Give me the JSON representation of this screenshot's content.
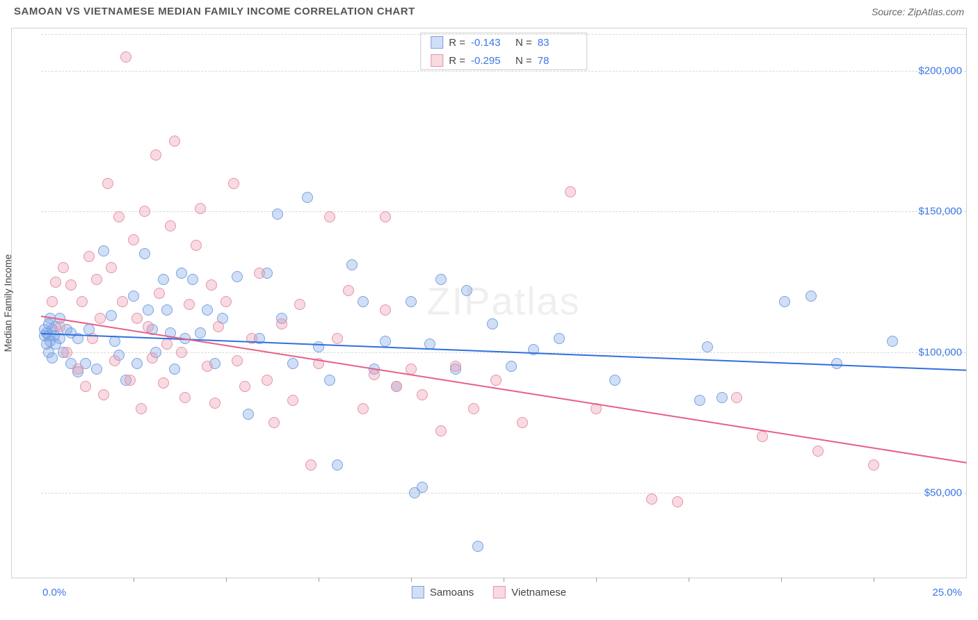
{
  "header": {
    "title": "SAMOAN VS VIETNAMESE MEDIAN FAMILY INCOME CORRELATION CHART",
    "source": "Source: ZipAtlas.com"
  },
  "watermark": "ZIPatlas",
  "chart": {
    "type": "scatter",
    "ylabel": "Median Family Income",
    "xlim": [
      0,
      25
    ],
    "ylim": [
      20000,
      215000
    ],
    "x_axis_left_label": "0.0%",
    "x_axis_right_label": "25.0%",
    "xtick_positions": [
      2.5,
      5.0,
      7.5,
      10.0,
      12.5,
      15.0,
      17.5,
      20.0,
      22.5
    ],
    "yticks": [
      50000,
      100000,
      150000,
      200000
    ],
    "ytick_labels": [
      "$50,000",
      "$100,000",
      "$150,000",
      "$200,000"
    ],
    "grid_color": "#d8d8d8",
    "background_color": "#ffffff",
    "axis_label_color": "#3b78e7",
    "point_radius": 8,
    "series": [
      {
        "name": "Samoans",
        "fill": "rgba(120,160,230,0.35)",
        "stroke": "#7aa3e0",
        "R": "-0.143",
        "N": "83",
        "regression": {
          "x1": 0,
          "y1": 107000,
          "x2": 25,
          "y2": 94000,
          "color": "#2f6fe0"
        },
        "points": [
          [
            0.1,
            106000
          ],
          [
            0.1,
            108000
          ],
          [
            0.15,
            103000
          ],
          [
            0.15,
            107000
          ],
          [
            0.2,
            100000
          ],
          [
            0.2,
            110000
          ],
          [
            0.2,
            106000
          ],
          [
            0.25,
            104000
          ],
          [
            0.25,
            112000
          ],
          [
            0.3,
            108000
          ],
          [
            0.3,
            98000
          ],
          [
            0.35,
            106000
          ],
          [
            0.4,
            109000
          ],
          [
            0.4,
            103000
          ],
          [
            0.5,
            105000
          ],
          [
            0.5,
            112000
          ],
          [
            0.6,
            100000
          ],
          [
            0.7,
            108000
          ],
          [
            0.8,
            107000
          ],
          [
            0.8,
            96000
          ],
          [
            1.0,
            93000
          ],
          [
            1.0,
            105000
          ],
          [
            1.2,
            96000
          ],
          [
            1.3,
            108000
          ],
          [
            1.5,
            94000
          ],
          [
            1.7,
            136000
          ],
          [
            1.9,
            113000
          ],
          [
            2.0,
            104000
          ],
          [
            2.1,
            99000
          ],
          [
            2.3,
            90000
          ],
          [
            2.5,
            120000
          ],
          [
            2.6,
            96000
          ],
          [
            2.8,
            135000
          ],
          [
            2.9,
            115000
          ],
          [
            3.0,
            108000
          ],
          [
            3.1,
            100000
          ],
          [
            3.3,
            126000
          ],
          [
            3.4,
            115000
          ],
          [
            3.5,
            107000
          ],
          [
            3.6,
            94000
          ],
          [
            3.8,
            128000
          ],
          [
            3.9,
            105000
          ],
          [
            4.1,
            126000
          ],
          [
            4.3,
            107000
          ],
          [
            4.5,
            115000
          ],
          [
            4.7,
            96000
          ],
          [
            4.9,
            112000
          ],
          [
            5.3,
            127000
          ],
          [
            5.6,
            78000
          ],
          [
            5.9,
            105000
          ],
          [
            6.1,
            128000
          ],
          [
            6.4,
            149000
          ],
          [
            6.5,
            112000
          ],
          [
            6.8,
            96000
          ],
          [
            7.2,
            155000
          ],
          [
            7.5,
            102000
          ],
          [
            7.8,
            90000
          ],
          [
            8.0,
            60000
          ],
          [
            8.4,
            131000
          ],
          [
            8.7,
            118000
          ],
          [
            9.0,
            94000
          ],
          [
            9.3,
            104000
          ],
          [
            9.6,
            88000
          ],
          [
            10.0,
            118000
          ],
          [
            10.1,
            50000
          ],
          [
            10.3,
            52000
          ],
          [
            10.5,
            103000
          ],
          [
            10.8,
            126000
          ],
          [
            11.2,
            94000
          ],
          [
            11.5,
            122000
          ],
          [
            11.8,
            31000
          ],
          [
            12.2,
            110000
          ],
          [
            12.7,
            95000
          ],
          [
            13.3,
            101000
          ],
          [
            14.0,
            105000
          ],
          [
            15.5,
            90000
          ],
          [
            17.8,
            83000
          ],
          [
            18.4,
            84000
          ],
          [
            18.0,
            102000
          ],
          [
            20.1,
            118000
          ],
          [
            20.8,
            120000
          ],
          [
            21.5,
            96000
          ],
          [
            23.0,
            104000
          ]
        ]
      },
      {
        "name": "Vietnamese",
        "fill": "rgba(235,150,170,0.35)",
        "stroke": "#e693ab",
        "R": "-0.295",
        "N": "78",
        "regression": {
          "x1": 0,
          "y1": 113000,
          "x2": 25,
          "y2": 61000,
          "color": "#e75e87"
        },
        "points": [
          [
            0.3,
            118000
          ],
          [
            0.4,
            125000
          ],
          [
            0.5,
            109000
          ],
          [
            0.6,
            130000
          ],
          [
            0.7,
            100000
          ],
          [
            0.8,
            124000
          ],
          [
            1.0,
            94000
          ],
          [
            1.1,
            118000
          ],
          [
            1.2,
            88000
          ],
          [
            1.3,
            134000
          ],
          [
            1.4,
            105000
          ],
          [
            1.5,
            126000
          ],
          [
            1.6,
            112000
          ],
          [
            1.7,
            85000
          ],
          [
            1.8,
            160000
          ],
          [
            1.9,
            130000
          ],
          [
            2.0,
            97000
          ],
          [
            2.1,
            148000
          ],
          [
            2.2,
            118000
          ],
          [
            2.3,
            205000
          ],
          [
            2.4,
            90000
          ],
          [
            2.5,
            140000
          ],
          [
            2.6,
            112000
          ],
          [
            2.7,
            80000
          ],
          [
            2.8,
            150000
          ],
          [
            2.9,
            109000
          ],
          [
            3.0,
            98000
          ],
          [
            3.1,
            170000
          ],
          [
            3.2,
            121000
          ],
          [
            3.3,
            89000
          ],
          [
            3.4,
            103000
          ],
          [
            3.5,
            145000
          ],
          [
            3.6,
            175000
          ],
          [
            3.8,
            100000
          ],
          [
            3.9,
            84000
          ],
          [
            4.0,
            117000
          ],
          [
            4.2,
            138000
          ],
          [
            4.3,
            151000
          ],
          [
            4.5,
            95000
          ],
          [
            4.6,
            124000
          ],
          [
            4.7,
            82000
          ],
          [
            4.8,
            109000
          ],
          [
            5.0,
            118000
          ],
          [
            5.2,
            160000
          ],
          [
            5.3,
            97000
          ],
          [
            5.5,
            88000
          ],
          [
            5.7,
            105000
          ],
          [
            5.9,
            128000
          ],
          [
            6.1,
            90000
          ],
          [
            6.3,
            75000
          ],
          [
            6.5,
            110000
          ],
          [
            6.8,
            83000
          ],
          [
            7.0,
            117000
          ],
          [
            7.3,
            60000
          ],
          [
            7.5,
            96000
          ],
          [
            7.8,
            148000
          ],
          [
            8.0,
            105000
          ],
          [
            8.3,
            122000
          ],
          [
            8.7,
            80000
          ],
          [
            9.0,
            92000
          ],
          [
            9.3,
            115000
          ],
          [
            9.3,
            148000
          ],
          [
            9.6,
            88000
          ],
          [
            10.0,
            94000
          ],
          [
            10.3,
            85000
          ],
          [
            10.8,
            72000
          ],
          [
            11.2,
            95000
          ],
          [
            11.7,
            80000
          ],
          [
            12.3,
            90000
          ],
          [
            13.0,
            75000
          ],
          [
            14.3,
            157000
          ],
          [
            15.0,
            80000
          ],
          [
            16.5,
            48000
          ],
          [
            17.2,
            47000
          ],
          [
            18.8,
            84000
          ],
          [
            19.5,
            70000
          ],
          [
            21.0,
            65000
          ],
          [
            22.5,
            60000
          ]
        ]
      }
    ],
    "legend_top_labels": {
      "R": "R =",
      "N": "N ="
    },
    "legend_bottom": [
      "Samoans",
      "Vietnamese"
    ]
  }
}
